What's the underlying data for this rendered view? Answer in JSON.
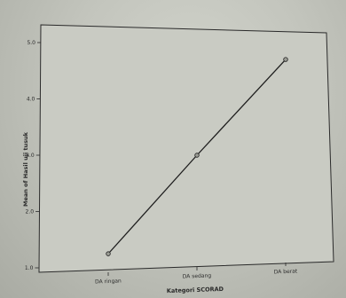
{
  "chart_data": {
    "type": "line",
    "title": "",
    "xlabel": "Kategori SCORAD",
    "ylabel": "Mean of Hasil uji tusuk",
    "categories": [
      "DA ringan",
      "DA sedang",
      "DA berat"
    ],
    "y_ticks": [
      "1.0",
      "2.0",
      "3.0",
      "4.0",
      "5.0"
    ],
    "ylim": [
      1.0,
      5.0
    ],
    "series": [
      {
        "values": [
          1.25,
          3.0,
          4.7
        ]
      }
    ],
    "grid": false,
    "colors": {
      "line": "#1e1e1e",
      "plot_background": "#c8cac2",
      "axis": "#2a2a2a"
    }
  }
}
